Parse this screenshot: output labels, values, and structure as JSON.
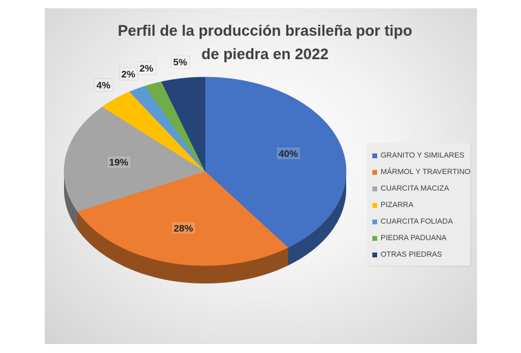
{
  "chart_data": {
    "type": "pie",
    "title": "Perfil de la producción brasileña por tipo de piedra en 2022",
    "legend_position": "right",
    "categories": [
      "GRANITO Y SIMILARES",
      "MÁRMOL Y TRAVERTINO",
      "CUARCITA MACIZA",
      "PIZARRA",
      "CUARCITA FOLIADA",
      "PIEDRA PADUANA",
      "OTRAS PIEDRAS"
    ],
    "values": [
      40,
      28,
      19,
      4,
      2,
      2,
      5
    ],
    "labels": [
      "40%",
      "28%",
      "19%",
      "4%",
      "2%",
      "2%",
      "5%"
    ],
    "colors": [
      "#4472c4",
      "#ed7d31",
      "#a5a5a5",
      "#ffc000",
      "#5b9bd5",
      "#70ad47",
      "#264478"
    ]
  }
}
